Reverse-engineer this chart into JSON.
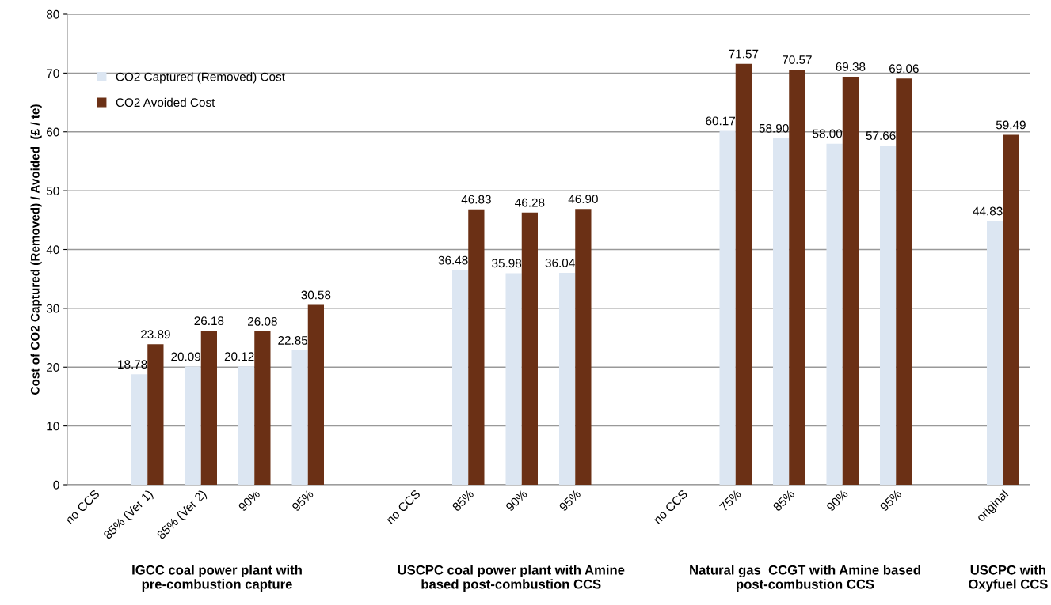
{
  "chart_data": {
    "type": "bar",
    "ylabel": "Cost of CO2 Captured (Removed) / Avoided  (£ / te)",
    "categories": [
      "no CCS",
      "85% (Ver 1)",
      "85% (Ver 2)",
      "90%",
      "95%",
      null,
      "no CCS",
      "85%",
      "90%",
      "95%",
      null,
      "no CCS",
      "75%",
      "85%",
      "90%",
      "95%",
      null,
      "original"
    ],
    "series": [
      {
        "name": "CO2 Captured (Removed) Cost",
        "color": "#dce6f2",
        "values": [
          null,
          18.78,
          20.09,
          20.12,
          22.85,
          null,
          null,
          36.48,
          35.98,
          36.04,
          null,
          null,
          60.17,
          58.9,
          58.0,
          57.66,
          null,
          44.83
        ],
        "value_labels": [
          null,
          "18.78",
          "20.09",
          "20.12",
          "22.85",
          null,
          null,
          "36.48",
          "35.98",
          "36.04",
          null,
          null,
          "60.17",
          "58.90",
          "58.00",
          "57.66",
          null,
          "44.83"
        ]
      },
      {
        "name": "CO2 Avoided Cost",
        "color": "#6b3015",
        "values": [
          null,
          23.89,
          26.18,
          26.08,
          30.58,
          null,
          null,
          46.83,
          46.28,
          46.9,
          null,
          null,
          71.57,
          70.57,
          69.38,
          69.06,
          null,
          59.49
        ],
        "value_labels": [
          null,
          "23.89",
          "26.18",
          "26.08",
          "30.58",
          null,
          null,
          "46.83",
          "46.28",
          "46.90",
          null,
          null,
          "71.57",
          "70.57",
          "69.38",
          "69.06",
          null,
          "59.49"
        ]
      }
    ],
    "ylim": [
      0,
      80
    ],
    "yticks": [
      0,
      10,
      20,
      30,
      40,
      50,
      60,
      70,
      80
    ],
    "grid": "y",
    "legend": "top left",
    "annotations": [
      "IGCC coal power plant with\npre-combustion capture",
      "USCPC coal power plant with Amine\nbased post-combustion CCS",
      "Natural gas  CCGT with Amine based\npost-combustion CCS",
      "USCPC with\nOxyfuel CCS"
    ]
  }
}
